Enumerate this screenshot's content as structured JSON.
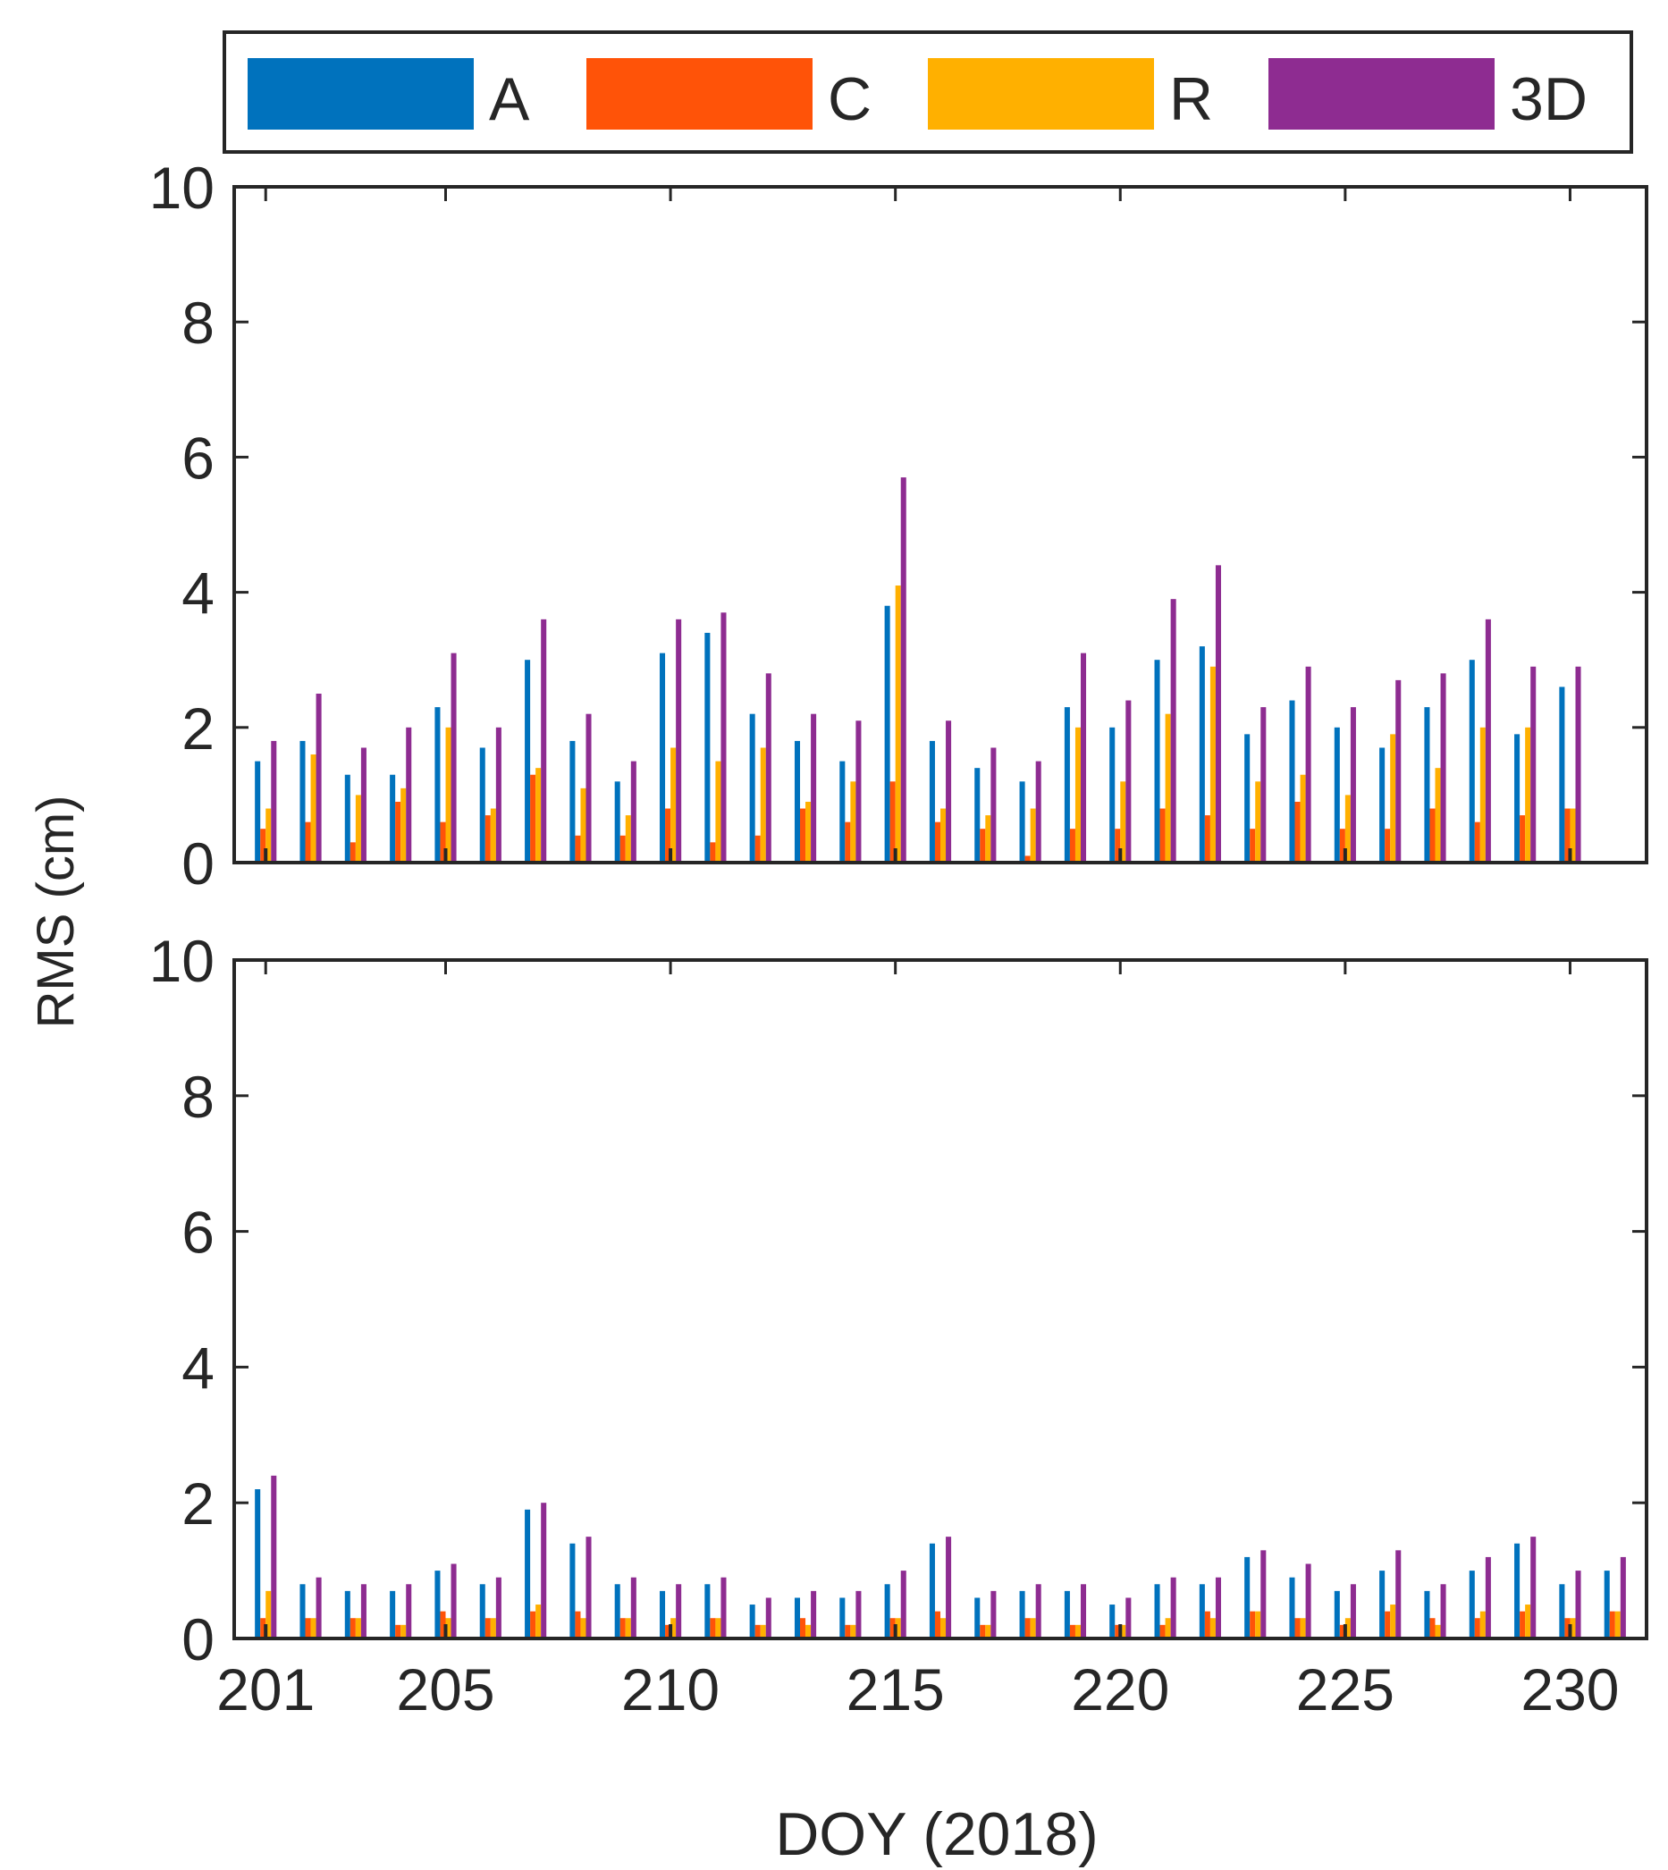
{
  "chart_data": [
    {
      "type": "bar",
      "panel": "top",
      "title": "",
      "xlabel": "",
      "ylabel": "RMS (cm)",
      "ylim": [
        0,
        10
      ],
      "yticks": [
        0,
        2,
        4,
        6,
        8,
        10
      ],
      "categories": [
        201,
        202,
        203,
        204,
        205,
        206,
        207,
        208,
        209,
        210,
        211,
        212,
        213,
        214,
        215,
        216,
        217,
        218,
        219,
        220,
        221,
        222,
        223,
        224,
        225,
        226,
        227,
        228,
        229,
        230
      ],
      "series": [
        {
          "name": "A",
          "values": [
            1.5,
            1.8,
            1.3,
            1.3,
            2.3,
            1.7,
            3.0,
            1.8,
            1.2,
            3.1,
            3.4,
            2.2,
            1.8,
            1.5,
            3.8,
            1.8,
            1.4,
            1.2,
            2.3,
            2.0,
            3.0,
            3.2,
            1.9,
            2.4,
            2.0,
            1.7,
            2.3,
            3.0,
            1.9,
            2.6
          ]
        },
        {
          "name": "C",
          "values": [
            0.5,
            0.6,
            0.3,
            0.9,
            0.6,
            0.7,
            1.3,
            0.4,
            0.4,
            0.8,
            0.3,
            0.4,
            0.8,
            0.6,
            1.2,
            0.6,
            0.5,
            0.1,
            0.5,
            0.5,
            0.8,
            0.7,
            0.5,
            0.9,
            0.5,
            0.5,
            0.8,
            0.6,
            0.7,
            0.8
          ]
        },
        {
          "name": "R",
          "values": [
            0.8,
            1.6,
            1.0,
            1.1,
            2.0,
            0.8,
            1.4,
            1.1,
            0.7,
            1.7,
            1.5,
            1.7,
            0.9,
            1.2,
            4.1,
            0.8,
            0.7,
            0.8,
            2.0,
            1.2,
            2.2,
            2.9,
            1.2,
            1.3,
            1.0,
            1.9,
            1.4,
            2.0,
            2.0,
            0.8
          ]
        },
        {
          "name": "3D",
          "values": [
            1.8,
            2.5,
            1.7,
            2.0,
            3.1,
            2.0,
            3.6,
            2.2,
            1.5,
            3.6,
            3.7,
            2.8,
            2.2,
            2.1,
            5.7,
            2.1,
            1.7,
            1.5,
            3.1,
            2.4,
            3.9,
            4.4,
            2.3,
            2.9,
            2.3,
            2.7,
            2.8,
            3.6,
            2.9,
            2.9
          ]
        }
      ]
    },
    {
      "type": "bar",
      "panel": "bottom",
      "title": "",
      "xlabel": "DOY (2018)",
      "ylabel": "RMS (cm)",
      "ylim": [
        0,
        10
      ],
      "yticks": [
        0,
        2,
        4,
        6,
        8,
        10
      ],
      "xticks": [
        201,
        205,
        210,
        215,
        220,
        225,
        230
      ],
      "categories": [
        201,
        202,
        203,
        204,
        205,
        206,
        207,
        208,
        209,
        210,
        211,
        212,
        213,
        214,
        215,
        216,
        217,
        218,
        219,
        220,
        221,
        222,
        223,
        224,
        225,
        226,
        227,
        228,
        229,
        230,
        231
      ],
      "series": [
        {
          "name": "A",
          "values": [
            2.2,
            0.8,
            0.7,
            0.7,
            1.0,
            0.8,
            1.9,
            1.4,
            0.8,
            0.7,
            0.8,
            0.5,
            0.6,
            0.6,
            0.8,
            1.4,
            0.6,
            0.7,
            0.7,
            0.5,
            0.8,
            0.8,
            1.2,
            0.9,
            0.7,
            1.0,
            0.7,
            1.0,
            1.4,
            0.8,
            1.0
          ]
        },
        {
          "name": "C",
          "values": [
            0.3,
            0.3,
            0.3,
            0.2,
            0.4,
            0.3,
            0.4,
            0.4,
            0.3,
            0.2,
            0.3,
            0.2,
            0.3,
            0.2,
            0.3,
            0.4,
            0.2,
            0.3,
            0.2,
            0.2,
            0.2,
            0.4,
            0.4,
            0.3,
            0.2,
            0.4,
            0.3,
            0.3,
            0.4,
            0.3,
            0.4
          ]
        },
        {
          "name": "R",
          "values": [
            0.7,
            0.3,
            0.3,
            0.2,
            0.3,
            0.3,
            0.5,
            0.3,
            0.3,
            0.3,
            0.3,
            0.2,
            0.2,
            0.2,
            0.3,
            0.3,
            0.2,
            0.3,
            0.2,
            0.2,
            0.3,
            0.3,
            0.4,
            0.3,
            0.3,
            0.5,
            0.2,
            0.4,
            0.5,
            0.3,
            0.4
          ]
        },
        {
          "name": "3D",
          "values": [
            2.4,
            0.9,
            0.8,
            0.8,
            1.1,
            0.9,
            2.0,
            1.5,
            0.9,
            0.8,
            0.9,
            0.6,
            0.7,
            0.7,
            1.0,
            1.5,
            0.7,
            0.8,
            0.8,
            0.6,
            0.9,
            0.9,
            1.3,
            1.1,
            0.8,
            1.3,
            0.8,
            1.2,
            1.5,
            1.0,
            1.2
          ]
        }
      ]
    }
  ],
  "legend": {
    "position": "top",
    "entries": [
      {
        "label": "A",
        "color": "#0072BD"
      },
      {
        "label": "C",
        "color": "#FF5308"
      },
      {
        "label": "R",
        "color": "#FFB000"
      },
      {
        "label": "3D",
        "color": "#8E2C91"
      }
    ]
  },
  "axis_color": "#262626",
  "shared_ylabel": "RMS (cm)",
  "shared_xlabel": "DOY (2018)"
}
